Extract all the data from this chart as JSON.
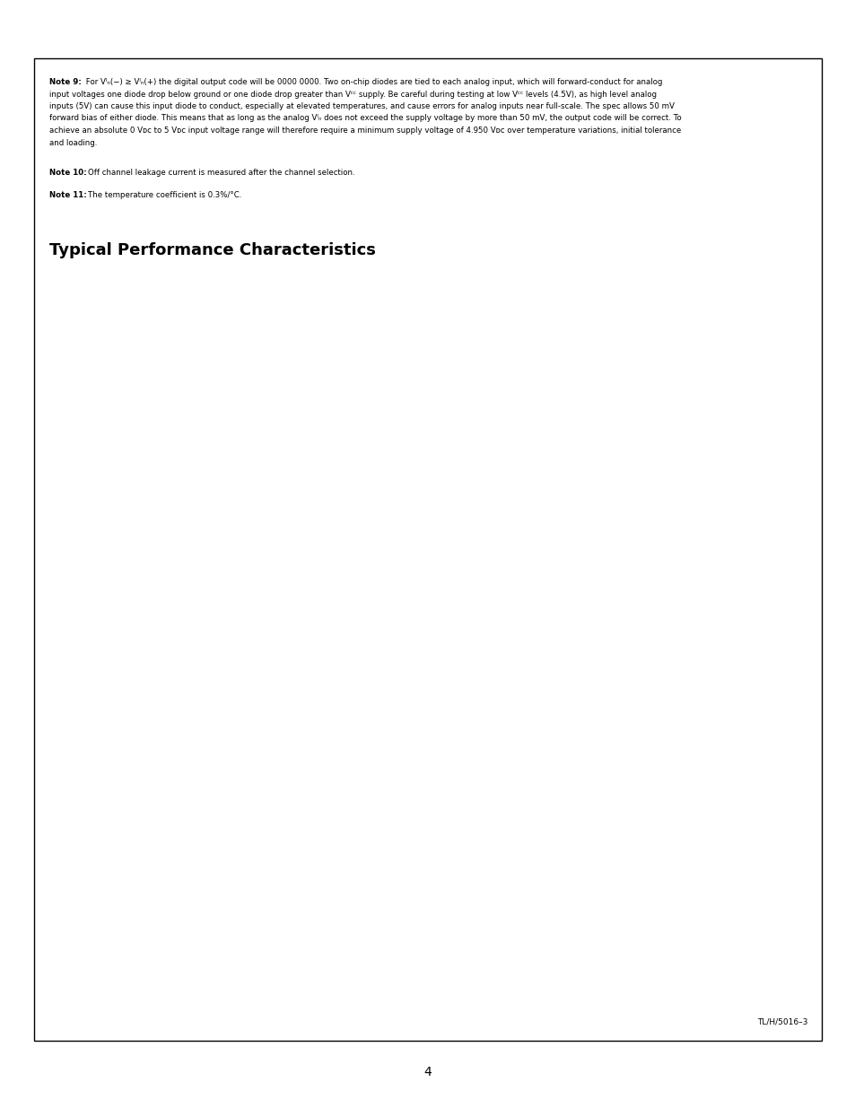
{
  "bg": "#ffffff",
  "section_title": "Typical Performance Characteristics",
  "footer": "TL/H/5016–3",
  "page_num": "4",
  "note9_bold": "Note 9:",
  "note9_rest": " For Vᴵₙ(−) ≥ Vᴵₙ(+) the digital output code will be 0000 0000. Two on-chip diodes are tied to each analog input, which will forward-conduct for analog",
  "note9_line2": "input voltages one diode drop below ground or one diode drop greater than Vᶜᶜ supply. Be careful during testing at low Vᶜᶜ levels (4.5V), as high level analog",
  "note9_line3": "inputs (5V) can cause this input diode to conduct, especially at elevated temperatures, and cause errors for analog inputs near full-scale. The spec allows 50 mV",
  "note9_line4": "forward bias of either diode. This means that as long as the analog Vᴵₙ does not exceed the supply voltage by more than 50 mV, the output code will be correct. To",
  "note9_line5": "achieve an absolute 0 Vᴅᴄ to 5 Vᴅᴄ input voltage range will therefore require a minimum supply voltage of 4.950 Vᴅᴄ over temperature variations, initial tolerance",
  "note9_line6": "and loading.",
  "note10": "Note 10: Off channel leakage current is measured after the channel selection.",
  "note11": "Note 11: The temperature coefficient is 0.3%/°C."
}
